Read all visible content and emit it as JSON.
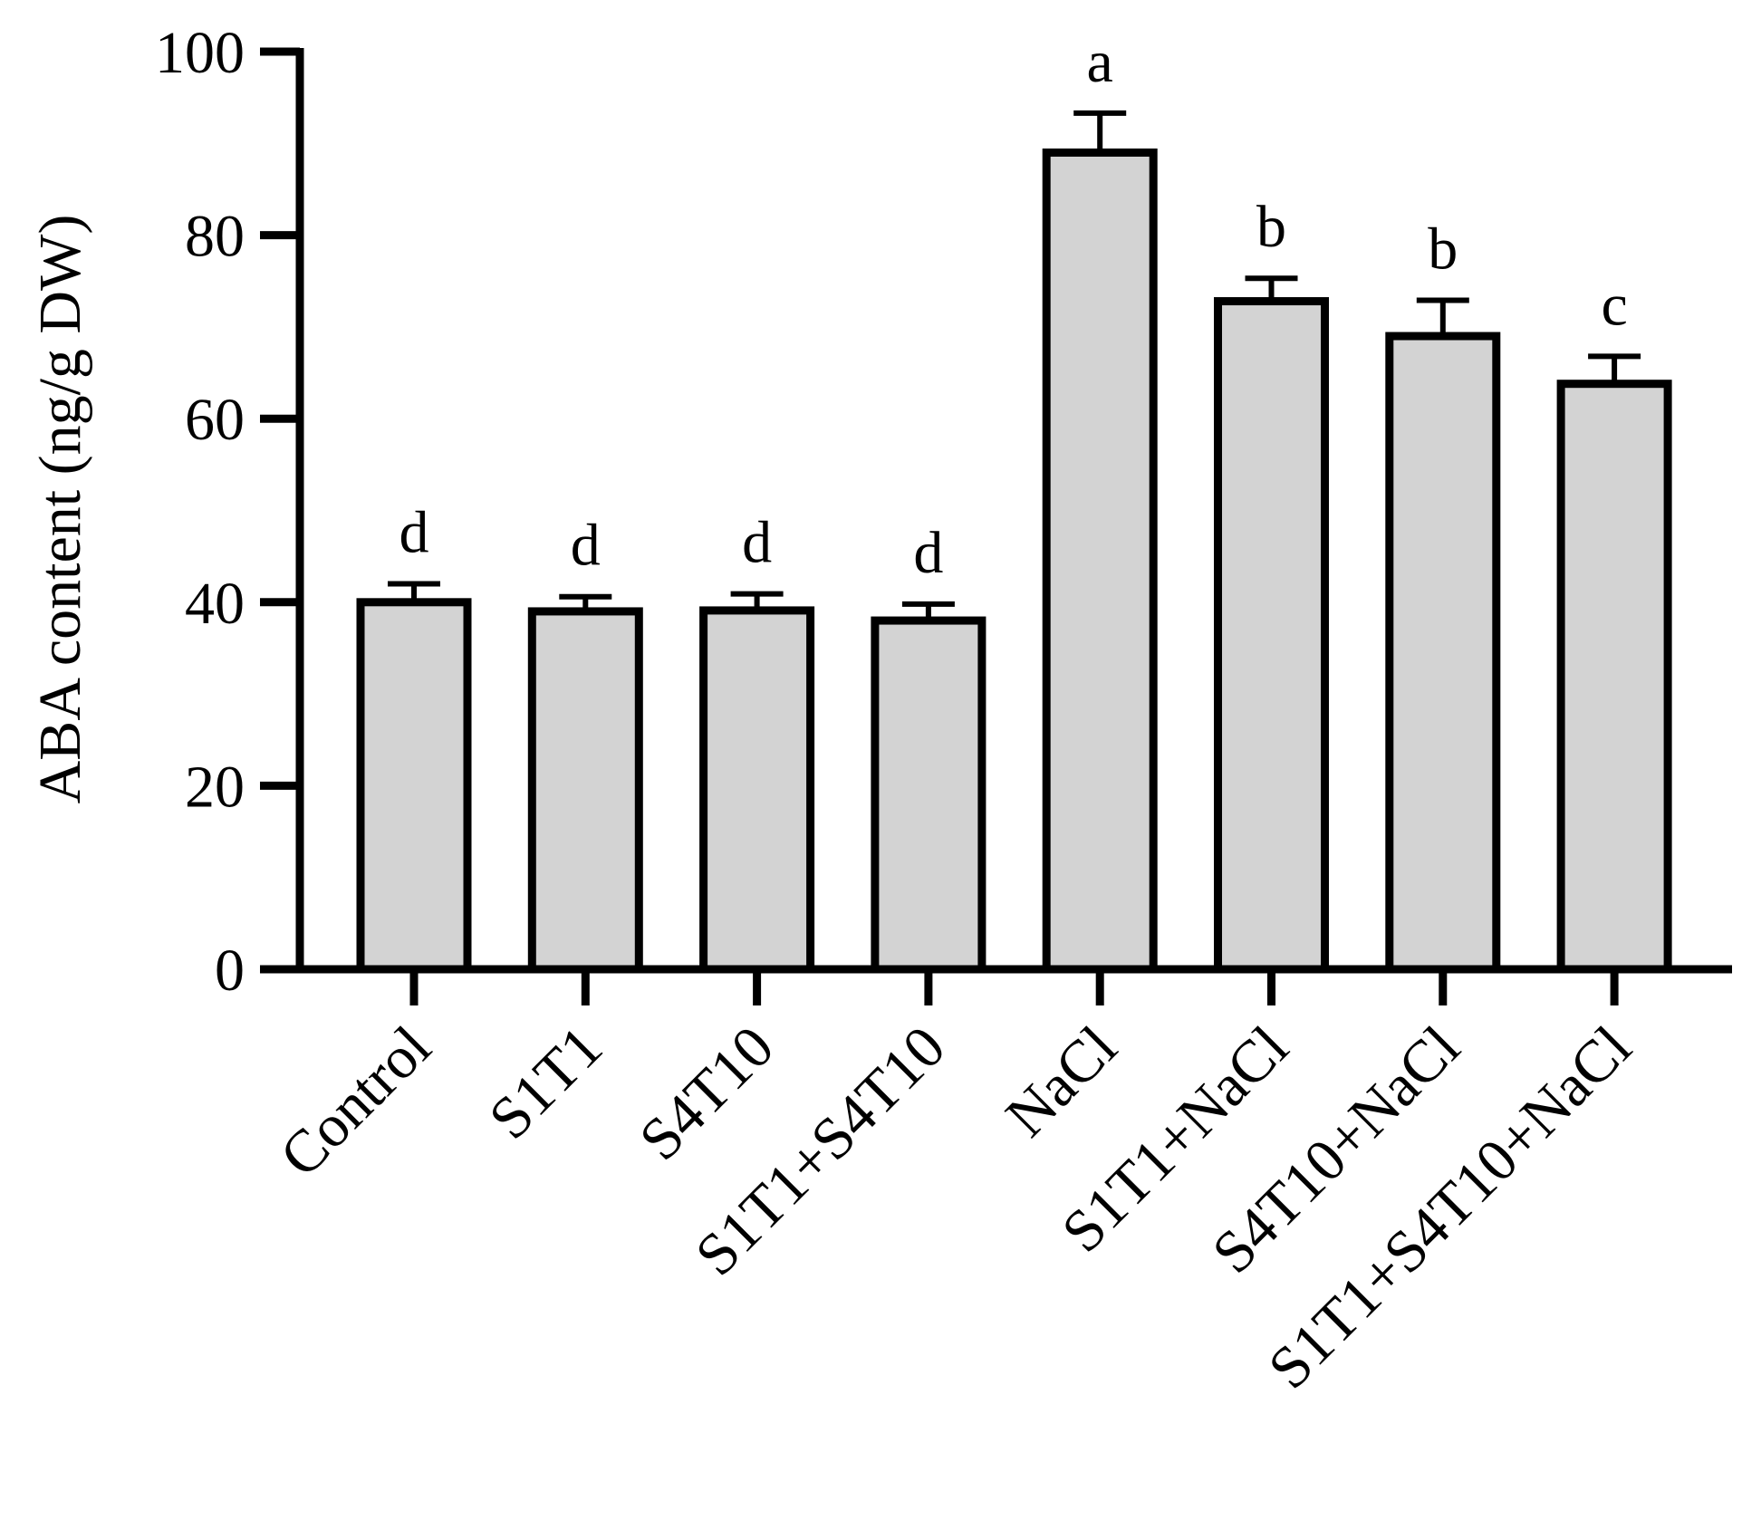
{
  "chart_data": {
    "type": "bar",
    "title": "",
    "xlabel": "",
    "ylabel": "ABA content (ng/g DW)",
    "ylim": [
      0,
      100
    ],
    "yticks": [
      0,
      20,
      40,
      60,
      80,
      100
    ],
    "ytick_labels": [
      "0",
      "20",
      "40",
      "60",
      "80",
      "100"
    ],
    "grid": false,
    "categories": [
      "Control",
      "S1T1",
      "S4T10",
      "S1T1+S4T10",
      "NaCl",
      "S1T1+NaCl",
      "S4T10+NaCl",
      "S1T1+S4T10+NaCl"
    ],
    "values": [
      40.0,
      39.0,
      39.1,
      38.0,
      89.0,
      72.8,
      69.0,
      63.8
    ],
    "errors": [
      2.0,
      1.6,
      1.8,
      1.8,
      4.3,
      2.5,
      3.9,
      3.0
    ],
    "significance_letters": [
      "d",
      "d",
      "d",
      "d",
      "a",
      "b",
      "b",
      "c"
    ],
    "bar_fill": "#d3d3d3",
    "bar_edge": "#000000"
  }
}
